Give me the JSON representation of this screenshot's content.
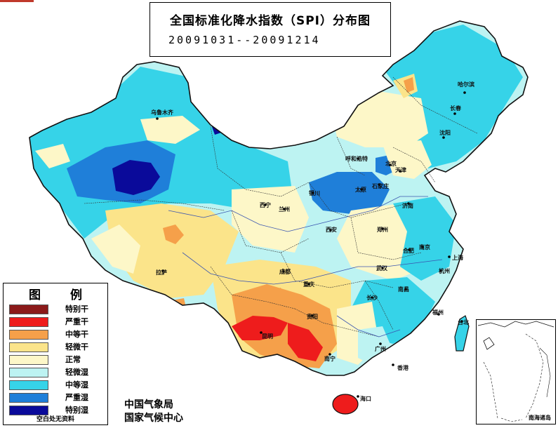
{
  "title": {
    "line1": "全国标准化降水指数（SPI）分布图",
    "line2": "20091031--20091214"
  },
  "legend": {
    "title": "图 例",
    "items": [
      {
        "label": "特别干",
        "color": "#8b1a1a"
      },
      {
        "label": "严重干",
        "color": "#ee1c1c"
      },
      {
        "label": "中等干",
        "color": "#f5a04a"
      },
      {
        "label": "轻微干",
        "color": "#fbe48a"
      },
      {
        "label": "正常",
        "color": "#fdf7c8"
      },
      {
        "label": "轻微湿",
        "color": "#bdf3f2"
      },
      {
        "label": "中等湿",
        "color": "#36d3e8"
      },
      {
        "label": "严重湿",
        "color": "#1f7fd9"
      },
      {
        "label": "特别湿",
        "color": "#0a0a9a"
      }
    ],
    "note": "空白处无资料"
  },
  "agency": {
    "line1": "中国气象局",
    "line2": "国家气候中心"
  },
  "inset": {
    "label": "南海诸岛"
  },
  "cities": {
    "urumqi": "乌鲁木齐",
    "harbin": "哈尔滨",
    "changchun": "长春",
    "shenyang": "沈阳",
    "hohhot": "呼和浩特",
    "beijing": "北京",
    "tianjin": "天津",
    "shijiazhuang": "石家庄",
    "taiyuan": "太原",
    "jinan": "济南",
    "yinchuan": "银川",
    "xining": "西宁",
    "lanzhou": "兰州",
    "xian": "西安",
    "zhengzhou": "郑州",
    "hefei": "合肥",
    "nanjing": "南京",
    "shanghai": "上海",
    "hangzhou": "杭州",
    "wuhan": "武汉",
    "chengdu": "成都",
    "lhasa": "拉萨",
    "chongqing": "重庆",
    "changsha": "长沙",
    "nanchang": "南昌",
    "fuzhou": "福州",
    "taibei": "台北",
    "guiyang": "贵阳",
    "kunming": "昆明",
    "nanning": "南宁",
    "guangzhou": "广州",
    "hongkong": "香港",
    "haikou": "海口"
  },
  "colors": {
    "special_dry": "#8b1a1a",
    "severe_dry": "#ee1c1c",
    "moderate_dry": "#f5a04a",
    "slight_dry": "#fbe48a",
    "normal": "#fdf7c8",
    "slight_wet": "#bdf3f2",
    "moderate_wet": "#36d3e8",
    "severe_wet": "#1f7fd9",
    "special_wet": "#0a0a9a"
  }
}
